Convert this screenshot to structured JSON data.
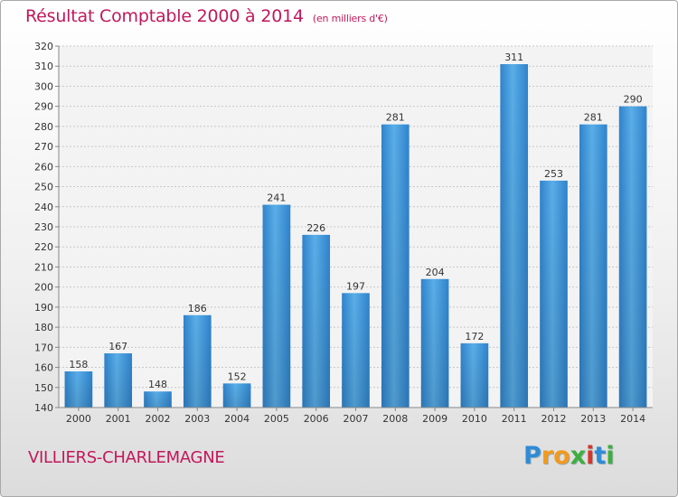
{
  "header": {
    "title": "Résultat Comptable 2000 à 2014",
    "subtitle": "(en milliers d'€)"
  },
  "footer": {
    "place": "VILLIERS-CHARLEMAGNE",
    "logo_letters": [
      "P",
      "r",
      "o",
      "x",
      "i",
      "t",
      "i"
    ],
    "logo_colors": [
      "#2e8bd8",
      "#f29a1e",
      "#f29a1e",
      "#3fae3f",
      "#d8342a",
      "#2e8bd8",
      "#3fae3f"
    ]
  },
  "chart_data": {
    "type": "bar",
    "categories": [
      "2000",
      "2001",
      "2002",
      "2003",
      "2004",
      "2005",
      "2006",
      "2007",
      "2008",
      "2009",
      "2010",
      "2011",
      "2012",
      "2013",
      "2014"
    ],
    "values": [
      158,
      167,
      148,
      186,
      152,
      241,
      226,
      197,
      281,
      204,
      172,
      311,
      253,
      281,
      290
    ],
    "title": "Résultat Comptable 2000 à 2014",
    "subtitle": "(en milliers d'€)",
    "ylim": [
      140,
      320
    ],
    "yticks": [
      140,
      150,
      160,
      170,
      180,
      190,
      200,
      210,
      220,
      230,
      240,
      250,
      260,
      270,
      280,
      290,
      300,
      310,
      320
    ],
    "grid": true,
    "bar_color": "#3f97dc"
  }
}
